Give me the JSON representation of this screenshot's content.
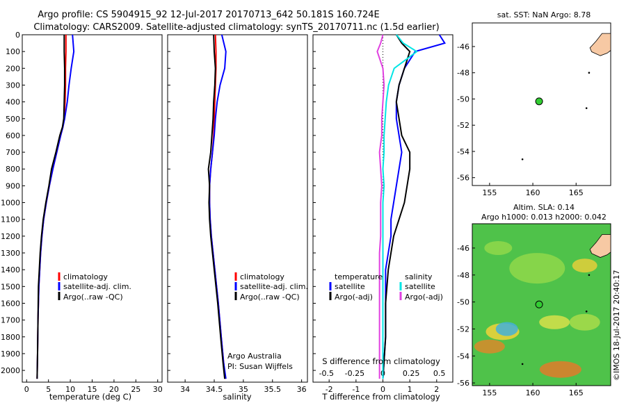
{
  "header": {
    "title_line1": "Argo profile: CS 5904915_92 12-Jul-2017 20170713_642 50.181S 160.724E",
    "title_line2": "Climatology: CARS2009. Satellite-adjusted climatology: synTS_20170711.nc (1.5d earlier)"
  },
  "map_top": {
    "title": "sat. SST: NaN Argo: 8.78",
    "xticks": [
      "155",
      "160",
      "165"
    ],
    "yticks": [
      "-46",
      "-48",
      "-50",
      "-52",
      "-54",
      "-56"
    ],
    "xlim": [
      153,
      169
    ],
    "ylim": [
      -56.6,
      -44.2
    ],
    "argo_position": {
      "lon": 160.724,
      "lat": -50.181
    }
  },
  "map_bottom": {
    "title_line1": "Altim. SLA: 0.14",
    "title_line2": "Argo h1000: 0.013 h2000: 0.042",
    "xticks": [
      "155",
      "160",
      "165"
    ],
    "yticks": [
      "-46",
      "-48",
      "-50",
      "-52",
      "-54",
      "-56"
    ],
    "xlim": [
      153,
      169
    ],
    "ylim": [
      -56.2,
      -44.2
    ],
    "argo_position": {
      "lon": 160.724,
      "lat": -50.181
    }
  },
  "side_stamp": "©IMOS 18-Jul-2017 20:40:17",
  "chart_data": [
    {
      "type": "line",
      "panel": "temperature",
      "xlabel": "temperature (deg C)",
      "ylabel": "",
      "xlim": [
        -1,
        31
      ],
      "ylim": [
        2070,
        0
      ],
      "y_reversed": true,
      "xticks": [
        "0",
        "5",
        "10",
        "15",
        "20",
        "25",
        "30"
      ],
      "yticks": [
        "0",
        "100",
        "200",
        "300",
        "400",
        "500",
        "600",
        "700",
        "800",
        "900",
        "1000",
        "1100",
        "1200",
        "1300",
        "1400",
        "1500",
        "1600",
        "1700",
        "1800",
        "1900",
        "2000"
      ],
      "grid": false,
      "legend": [
        "climatology",
        "satellite-adj. clim.",
        "Argo(..raw -QC)"
      ],
      "legend_position": "bottom-right",
      "series": [
        {
          "name": "climatology",
          "color": "#ff0000",
          "x": [
            9.0,
            9.0,
            8.9,
            8.9,
            8.8,
            8.6,
            8.3,
            7.8,
            6.9,
            6.0,
            5.2,
            4.5,
            3.9,
            3.5,
            3.2,
            3.0,
            2.8,
            2.6,
            2.5,
            2.4
          ],
          "y": [
            0,
            100,
            200,
            300,
            400,
            500,
            550,
            600,
            700,
            800,
            900,
            1000,
            1100,
            1200,
            1300,
            1400,
            1500,
            1700,
            1900,
            2050
          ]
        },
        {
          "name": "satellite-adj. clim.",
          "color": "#0000ff",
          "x": [
            10.5,
            10.8,
            10.2,
            9.7,
            9.3,
            8.7,
            8.3,
            7.8,
            6.9,
            6.0,
            5.2,
            4.5,
            3.9,
            3.5,
            3.2,
            3.0,
            2.8,
            2.6,
            2.5,
            2.4
          ],
          "y": [
            0,
            100,
            200,
            300,
            400,
            500,
            550,
            600,
            700,
            800,
            900,
            1000,
            1100,
            1200,
            1300,
            1400,
            1500,
            1700,
            1900,
            2050
          ]
        },
        {
          "name": "Argo(..raw -QC)",
          "color": "#000000",
          "x": [
            8.6,
            8.6,
            8.7,
            8.7,
            8.6,
            8.5,
            8.2,
            7.6,
            6.7,
            5.7,
            5.1,
            4.4,
            3.8,
            3.4,
            3.1,
            2.9,
            2.7,
            2.6,
            2.5,
            2.4
          ],
          "y": [
            0,
            100,
            200,
            300,
            400,
            500,
            550,
            600,
            700,
            800,
            900,
            1000,
            1100,
            1200,
            1300,
            1400,
            1500,
            1700,
            1900,
            2050
          ]
        }
      ]
    },
    {
      "type": "line",
      "panel": "salinity",
      "xlabel": "salinity",
      "ylabel": "",
      "xlim": [
        33.7,
        36.1
      ],
      "ylim": [
        2070,
        0
      ],
      "y_reversed": true,
      "xticks": [
        "34",
        "34.5",
        "35",
        "35.5",
        "36"
      ],
      "grid": false,
      "legend": [
        "climatology",
        "satellite-adj. clim.",
        "Argo(..raw -QC)"
      ],
      "legend_position": "bottom-right",
      "annotation_line1": "Argo Australia",
      "annotation_line2": "PI: Susan Wijffels",
      "series": [
        {
          "name": "climatology",
          "color": "#ff0000",
          "x": [
            34.52,
            34.53,
            34.53,
            34.52,
            34.51,
            34.5,
            34.49,
            34.47,
            34.44,
            34.42,
            34.42,
            34.43,
            34.45,
            34.48,
            34.51,
            34.54,
            34.57,
            34.62,
            34.66,
            34.69
          ],
          "y": [
            0,
            100,
            200,
            300,
            400,
            500,
            600,
            700,
            800,
            900,
            1000,
            1100,
            1200,
            1300,
            1400,
            1500,
            1600,
            1800,
            1950,
            2050
          ]
        },
        {
          "name": "satellite-adj. clim.",
          "color": "#0000ff",
          "x": [
            34.63,
            34.7,
            34.68,
            34.6,
            34.55,
            34.52,
            34.5,
            34.47,
            34.44,
            34.42,
            34.42,
            34.43,
            34.45,
            34.48,
            34.51,
            34.54,
            34.57,
            34.62,
            34.66,
            34.7
          ],
          "y": [
            0,
            100,
            200,
            300,
            400,
            500,
            600,
            700,
            800,
            900,
            1000,
            1100,
            1200,
            1300,
            1400,
            1500,
            1600,
            1800,
            1950,
            2050
          ]
        },
        {
          "name": "Argo(..raw -QC)",
          "color": "#000000",
          "x": [
            34.49,
            34.5,
            34.52,
            34.51,
            34.49,
            34.48,
            34.46,
            34.44,
            34.4,
            34.42,
            34.41,
            34.42,
            34.44,
            34.47,
            34.5,
            34.53,
            34.56,
            34.61,
            34.65,
            34.68
          ],
          "y": [
            0,
            100,
            200,
            300,
            400,
            500,
            600,
            700,
            800,
            900,
            1000,
            1100,
            1200,
            1300,
            1400,
            1500,
            1600,
            1800,
            1950,
            2050
          ]
        }
      ]
    },
    {
      "type": "line",
      "panel": "difference",
      "xlabel": "T difference from climatology",
      "xlabel_top": "S difference from climatology",
      "ylabel": "",
      "xlim": [
        -2.6,
        2.6
      ],
      "ylim": [
        2070,
        0
      ],
      "y_reversed": true,
      "xticks": [
        "-2",
        "-1",
        "0",
        "1",
        "2"
      ],
      "xticks_salinity": [
        "-0.5",
        "-0.25",
        "0",
        "0.25",
        "0.5"
      ],
      "grid": false,
      "legend_left_title": "temperature",
      "legend_right_title": "salinity",
      "legend": [
        "satellite",
        "Argo(-adj)",
        "satellite",
        "Argo(-adj)"
      ],
      "legend_position": "bottom",
      "series": [
        {
          "name": "T satellite",
          "color": "#0000ff",
          "x": [
            2.1,
            2.3,
            1.2,
            0.8,
            0.6,
            0.5,
            0.5,
            0.6,
            0.7,
            0.6,
            0.5,
            0.4,
            0.3,
            0.3,
            0.2,
            0.1,
            0.1,
            0.1,
            0.0
          ],
          "y": [
            0,
            50,
            100,
            200,
            300,
            400,
            500,
            600,
            700,
            800,
            900,
            1000,
            1100,
            1200,
            1300,
            1400,
            1600,
            1800,
            2050
          ]
        },
        {
          "name": "T Argo(-adj)",
          "color": "#000000",
          "x": [
            0.5,
            0.7,
            1.0,
            0.8,
            0.6,
            0.5,
            0.6,
            0.7,
            1.0,
            1.0,
            0.9,
            0.8,
            0.6,
            0.4,
            0.3,
            0.2,
            0.1,
            0.1,
            0.0
          ],
          "y": [
            0,
            50,
            100,
            200,
            300,
            400,
            500,
            600,
            700,
            800,
            900,
            1000,
            1100,
            1200,
            1300,
            1400,
            1600,
            1800,
            2050
          ]
        },
        {
          "name": "S satellite",
          "color": "#00e5e5",
          "x": [
            0.12,
            0.18,
            0.3,
            0.1,
            0.05,
            0.03,
            0.02,
            0.01,
            0.01,
            0.0,
            0.01,
            0.0,
            0.0,
            0.0,
            0.0,
            0.0,
            0.0,
            0.0,
            0.0
          ],
          "y": [
            0,
            50,
            100,
            200,
            300,
            400,
            500,
            600,
            700,
            800,
            900,
            1000,
            1100,
            1200,
            1300,
            1400,
            1600,
            1800,
            2050
          ]
        },
        {
          "name": "S Argo(-adj)",
          "color": "#e040e0",
          "x": [
            0.0,
            -0.02,
            -0.05,
            0.0,
            0.01,
            0.0,
            -0.01,
            -0.01,
            -0.03,
            -0.02,
            -0.01,
            -0.02,
            -0.02,
            -0.02,
            -0.03,
            -0.03,
            -0.03,
            -0.03,
            -0.03
          ],
          "y": [
            0,
            50,
            100,
            200,
            300,
            400,
            500,
            600,
            700,
            800,
            900,
            1000,
            1100,
            1200,
            1300,
            1400,
            1600,
            1800,
            2050
          ]
        }
      ]
    }
  ],
  "colors": {
    "land": "#f7c9a4",
    "argo_marker": "#32cd32",
    "temp_clim": "#ff0000",
    "sat_clim": "#0000ff",
    "argo": "#000000",
    "s_sat": "#00e5e5",
    "s_argo": "#e040e0"
  }
}
